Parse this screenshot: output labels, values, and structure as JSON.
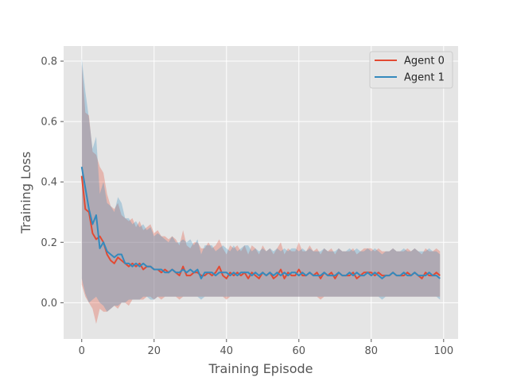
{
  "chart_data": {
    "type": "line",
    "title": "",
    "xlabel": "Training Episode",
    "ylabel": "Training Loss",
    "xlim": [
      -5,
      104
    ],
    "ylim": [
      -0.12,
      0.85
    ],
    "xticks": [
      0,
      20,
      40,
      60,
      80,
      100
    ],
    "yticks": [
      0.0,
      0.2,
      0.4,
      0.6,
      0.8
    ],
    "grid": true,
    "legend_position": "top-right",
    "background_color": "#E5E5E5",
    "grid_color": "#FFFFFF",
    "x": [
      0,
      1,
      2,
      3,
      4,
      5,
      6,
      7,
      8,
      9,
      10,
      11,
      12,
      13,
      14,
      15,
      16,
      17,
      18,
      19,
      20,
      21,
      22,
      23,
      24,
      25,
      26,
      27,
      28,
      29,
      30,
      31,
      32,
      33,
      34,
      35,
      36,
      37,
      38,
      39,
      40,
      41,
      42,
      43,
      44,
      45,
      46,
      47,
      48,
      49,
      50,
      51,
      52,
      53,
      54,
      55,
      56,
      57,
      58,
      59,
      60,
      61,
      62,
      63,
      64,
      65,
      66,
      67,
      68,
      69,
      70,
      71,
      72,
      73,
      74,
      75,
      76,
      77,
      78,
      79,
      80,
      81,
      82,
      83,
      84,
      85,
      86,
      87,
      88,
      89,
      90,
      91,
      92,
      93,
      94,
      95,
      96,
      97,
      98,
      99
    ],
    "series": [
      {
        "name": "Agent 0",
        "color": "#E24A33",
        "values": [
          0.42,
          0.31,
          0.3,
          0.23,
          0.21,
          0.22,
          0.2,
          0.16,
          0.14,
          0.13,
          0.15,
          0.14,
          0.13,
          0.12,
          0.13,
          0.12,
          0.13,
          0.11,
          0.12,
          0.12,
          0.11,
          0.11,
          0.1,
          0.11,
          0.1,
          0.11,
          0.1,
          0.09,
          0.12,
          0.09,
          0.09,
          0.1,
          0.1,
          0.09,
          0.09,
          0.1,
          0.09,
          0.1,
          0.12,
          0.09,
          0.08,
          0.1,
          0.09,
          0.1,
          0.09,
          0.1,
          0.08,
          0.1,
          0.09,
          0.08,
          0.1,
          0.09,
          0.1,
          0.08,
          0.09,
          0.11,
          0.08,
          0.1,
          0.09,
          0.09,
          0.11,
          0.09,
          0.09,
          0.1,
          0.09,
          0.1,
          0.08,
          0.1,
          0.09,
          0.1,
          0.08,
          0.1,
          0.09,
          0.09,
          0.09,
          0.1,
          0.08,
          0.09,
          0.1,
          0.1,
          0.1,
          0.09,
          0.1,
          0.09,
          0.09,
          0.09,
          0.1,
          0.09,
          0.09,
          0.09,
          0.1,
          0.09,
          0.1,
          0.09,
          0.08,
          0.1,
          0.09,
          0.09,
          0.1,
          0.09
        ],
        "band_lower": [
          0.06,
          0.02,
          0.0,
          -0.02,
          -0.07,
          -0.02,
          -0.03,
          -0.03,
          -0.02,
          -0.01,
          -0.02,
          0.0,
          0.0,
          -0.01,
          0.01,
          0.01,
          0.01,
          0.01,
          0.02,
          0.02,
          0.01,
          0.02,
          0.01,
          0.02,
          0.02,
          0.02,
          0.02,
          0.01,
          0.02,
          0.02,
          0.02,
          0.02,
          0.02,
          0.02,
          0.02,
          0.02,
          0.02,
          0.02,
          0.02,
          0.02,
          0.01,
          0.02,
          0.02,
          0.02,
          0.02,
          0.02,
          0.02,
          0.02,
          0.02,
          0.02,
          0.02,
          0.02,
          0.02,
          0.02,
          0.02,
          0.02,
          0.02,
          0.02,
          0.02,
          0.02,
          0.02,
          0.02,
          0.02,
          0.02,
          0.02,
          0.02,
          0.01,
          0.02,
          0.02,
          0.02,
          0.02,
          0.02,
          0.02,
          0.02,
          0.02,
          0.02,
          0.02,
          0.02,
          0.02,
          0.02,
          0.02,
          0.02,
          0.02,
          0.02,
          0.02,
          0.02,
          0.02,
          0.02,
          0.02,
          0.02,
          0.02,
          0.02,
          0.02,
          0.02,
          0.02,
          0.02,
          0.02,
          0.02,
          0.02,
          0.02
        ],
        "band_upper": [
          0.79,
          0.63,
          0.62,
          0.5,
          0.49,
          0.45,
          0.43,
          0.36,
          0.32,
          0.31,
          0.33,
          0.29,
          0.28,
          0.27,
          0.28,
          0.25,
          0.27,
          0.24,
          0.25,
          0.26,
          0.23,
          0.24,
          0.22,
          0.22,
          0.21,
          0.22,
          0.21,
          0.19,
          0.24,
          0.19,
          0.18,
          0.2,
          0.2,
          0.18,
          0.18,
          0.2,
          0.18,
          0.19,
          0.21,
          0.18,
          0.16,
          0.19,
          0.18,
          0.19,
          0.17,
          0.19,
          0.16,
          0.19,
          0.18,
          0.16,
          0.19,
          0.17,
          0.18,
          0.16,
          0.18,
          0.2,
          0.16,
          0.18,
          0.17,
          0.17,
          0.2,
          0.17,
          0.17,
          0.19,
          0.17,
          0.18,
          0.16,
          0.18,
          0.17,
          0.18,
          0.16,
          0.18,
          0.17,
          0.17,
          0.17,
          0.18,
          0.16,
          0.17,
          0.18,
          0.18,
          0.18,
          0.17,
          0.18,
          0.17,
          0.17,
          0.17,
          0.18,
          0.17,
          0.17,
          0.17,
          0.18,
          0.17,
          0.18,
          0.17,
          0.16,
          0.18,
          0.17,
          0.17,
          0.18,
          0.17
        ]
      },
      {
        "name": "Agent 1",
        "color": "#348ABD",
        "values": [
          0.45,
          0.38,
          0.31,
          0.26,
          0.29,
          0.18,
          0.2,
          0.17,
          0.16,
          0.15,
          0.16,
          0.16,
          0.13,
          0.13,
          0.12,
          0.13,
          0.12,
          0.13,
          0.12,
          0.12,
          0.11,
          0.11,
          0.11,
          0.1,
          0.1,
          0.11,
          0.1,
          0.1,
          0.11,
          0.1,
          0.11,
          0.1,
          0.11,
          0.08,
          0.1,
          0.1,
          0.1,
          0.09,
          0.1,
          0.1,
          0.1,
          0.09,
          0.1,
          0.09,
          0.1,
          0.1,
          0.1,
          0.09,
          0.1,
          0.09,
          0.1,
          0.09,
          0.1,
          0.09,
          0.1,
          0.09,
          0.1,
          0.09,
          0.1,
          0.1,
          0.09,
          0.1,
          0.09,
          0.1,
          0.09,
          0.09,
          0.09,
          0.1,
          0.09,
          0.09,
          0.09,
          0.1,
          0.09,
          0.09,
          0.1,
          0.09,
          0.1,
          0.09,
          0.09,
          0.1,
          0.09,
          0.1,
          0.09,
          0.08,
          0.09,
          0.09,
          0.1,
          0.09,
          0.09,
          0.1,
          0.09,
          0.09,
          0.1,
          0.09,
          0.09,
          0.09,
          0.1,
          0.09,
          0.09,
          0.08
        ],
        "band_lower": [
          0.08,
          0.03,
          0.0,
          0.01,
          0.02,
          0.0,
          -0.01,
          -0.03,
          -0.02,
          -0.01,
          -0.01,
          0.0,
          0.0,
          0.01,
          0.01,
          0.01,
          0.01,
          0.02,
          0.02,
          0.01,
          0.01,
          0.02,
          0.02,
          0.02,
          0.02,
          0.02,
          0.02,
          0.02,
          0.02,
          0.02,
          0.02,
          0.02,
          0.02,
          0.01,
          0.02,
          0.02,
          0.02,
          0.02,
          0.02,
          0.02,
          0.02,
          0.02,
          0.02,
          0.02,
          0.02,
          0.02,
          0.02,
          0.02,
          0.02,
          0.02,
          0.02,
          0.02,
          0.02,
          0.02,
          0.02,
          0.02,
          0.02,
          0.02,
          0.02,
          0.02,
          0.02,
          0.02,
          0.02,
          0.02,
          0.02,
          0.02,
          0.02,
          0.02,
          0.02,
          0.02,
          0.02,
          0.02,
          0.02,
          0.02,
          0.02,
          0.02,
          0.02,
          0.02,
          0.02,
          0.02,
          0.02,
          0.02,
          0.02,
          0.01,
          0.02,
          0.02,
          0.02,
          0.02,
          0.02,
          0.02,
          0.02,
          0.02,
          0.02,
          0.02,
          0.02,
          0.02,
          0.02,
          0.02,
          0.02,
          0.01
        ],
        "band_upper": [
          0.81,
          0.7,
          0.61,
          0.51,
          0.55,
          0.36,
          0.4,
          0.33,
          0.32,
          0.3,
          0.35,
          0.33,
          0.28,
          0.28,
          0.26,
          0.27,
          0.25,
          0.26,
          0.24,
          0.25,
          0.22,
          0.23,
          0.22,
          0.21,
          0.2,
          0.22,
          0.2,
          0.2,
          0.21,
          0.2,
          0.21,
          0.19,
          0.21,
          0.16,
          0.19,
          0.19,
          0.19,
          0.17,
          0.18,
          0.19,
          0.18,
          0.17,
          0.19,
          0.17,
          0.18,
          0.19,
          0.19,
          0.17,
          0.18,
          0.17,
          0.18,
          0.17,
          0.18,
          0.17,
          0.18,
          0.17,
          0.18,
          0.17,
          0.18,
          0.18,
          0.17,
          0.18,
          0.17,
          0.18,
          0.17,
          0.17,
          0.17,
          0.18,
          0.17,
          0.17,
          0.17,
          0.18,
          0.17,
          0.17,
          0.18,
          0.17,
          0.18,
          0.17,
          0.17,
          0.18,
          0.17,
          0.18,
          0.17,
          0.16,
          0.17,
          0.17,
          0.18,
          0.17,
          0.17,
          0.18,
          0.17,
          0.17,
          0.18,
          0.17,
          0.17,
          0.17,
          0.18,
          0.17,
          0.17,
          0.16
        ]
      }
    ]
  }
}
